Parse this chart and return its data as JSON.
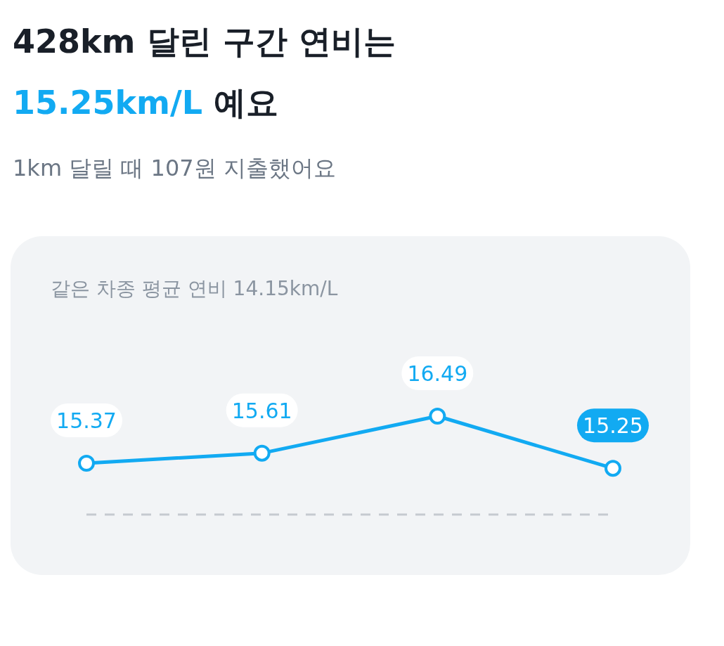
{
  "chart_data": {
    "type": "line",
    "title": "428km 달린 구간 연비는\n15.25km/L 예요",
    "subtitle": "1km 달릴 때 107원 지출했어요",
    "categories": [
      null,
      null,
      null,
      null
    ],
    "series": [
      {
        "color": "#12aaf2",
        "values": [
          15.37,
          15.61,
          16.49,
          15.25
        ]
      }
    ],
    "tick_labels": false,
    "data_labels": true,
    "marker": "circle",
    "line_style": "solid",
    "grid": false,
    "annotations": [
      "같은 차종 평균 연비 14.15km/L"
    ],
    "ref_lines": [
      {
        "axis": "y",
        "value": 14.15,
        "color": "#c5cad0",
        "line_style": "dashed"
      }
    ]
  }
}
